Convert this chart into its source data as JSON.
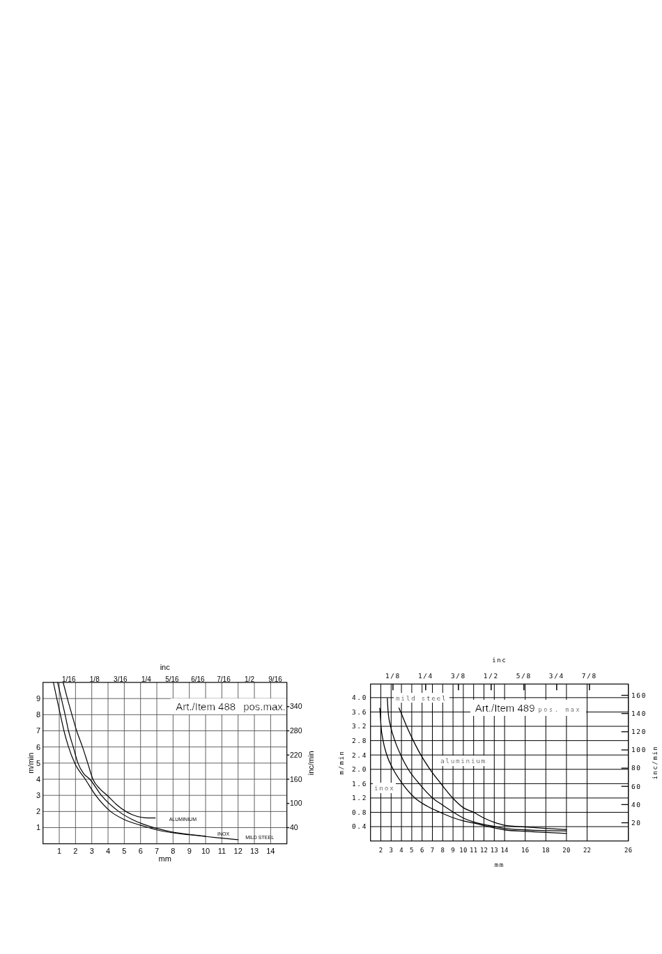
{
  "chart_data": [
    {
      "type": "line",
      "title": "Art./Item 488",
      "subtitle": "pos.max.",
      "xlabel": "mm",
      "ylabel": "m/min",
      "x2label": "inc",
      "y2label": "inc/min",
      "xlim": [
        0,
        15
      ],
      "xticks": [
        1,
        2,
        3,
        4,
        5,
        6,
        7,
        8,
        9,
        10,
        11,
        12,
        13,
        14
      ],
      "ylim": [
        0,
        10
      ],
      "yticks": [
        1,
        2,
        3,
        4,
        5,
        6,
        7,
        8,
        9
      ],
      "x2lim": [
        0,
        0.5906
      ],
      "x2ticks": [
        {
          "value": 0.0625,
          "label": "1/16"
        },
        {
          "value": 0.125,
          "label": "1/8"
        },
        {
          "value": 0.1875,
          "label": "3/16"
        },
        {
          "value": 0.25,
          "label": "1/4"
        },
        {
          "value": 0.3125,
          "label": "5/16"
        },
        {
          "value": 0.375,
          "label": "6/16"
        },
        {
          "value": 0.4375,
          "label": "7/16"
        },
        {
          "value": 0.5,
          "label": "1/2"
        },
        {
          "value": 0.5625,
          "label": "9/16"
        }
      ],
      "y2lim": [
        0,
        400
      ],
      "y2ticks": [
        40,
        100,
        160,
        220,
        280,
        340
      ],
      "grid": true,
      "series": [
        {
          "name": "ALUMINIUM",
          "color": "#000000",
          "x": [
            1.24,
            1.5,
            1.78,
            2.07,
            2.43,
            2.75,
            3.07,
            3.5,
            3.95,
            4.5,
            5.1,
            5.5,
            6.0,
            6.5,
            6.9
          ],
          "values": [
            10,
            9,
            8,
            7,
            6,
            5,
            4,
            3.4,
            3,
            2.45,
            2,
            1.8,
            1.65,
            1.6,
            1.6
          ]
        },
        {
          "name": "INOX",
          "color": "#000000",
          "x": [
            0.9,
            1.13,
            1.36,
            1.57,
            1.86,
            2.15,
            2.5,
            2.88,
            3.59,
            4.66,
            5.5,
            6.2,
            7.0,
            8.0,
            9.0,
            10.0
          ],
          "values": [
            10,
            9,
            8,
            7,
            6,
            5,
            4.35,
            4,
            3,
            2,
            1.5,
            1.2,
            0.95,
            0.72,
            0.58,
            0.47
          ]
        },
        {
          "name": "MILD STEEL",
          "color": "#000000",
          "x": [
            0.64,
            0.85,
            1.07,
            1.29,
            1.57,
            1.95,
            2.6,
            3.24,
            4.16,
            5.0,
            6.0,
            6.5,
            7.0,
            8.0,
            9.0,
            10.0,
            11.0,
            12.0
          ],
          "values": [
            10,
            9,
            8,
            7,
            6,
            5,
            4,
            3,
            2,
            1.5,
            1.15,
            1.0,
            0.86,
            0.68,
            0.56,
            0.45,
            0.35,
            0.25
          ]
        }
      ]
    },
    {
      "type": "line",
      "title": "Art./Item 489",
      "subtitle": "pos. max",
      "xlabel": "mm",
      "ylabel": "m/min",
      "x2label": "inc",
      "y2label": "inc/min",
      "xlim": [
        1,
        26
      ],
      "xticks": [
        2,
        3,
        4,
        5,
        6,
        7,
        8,
        9,
        10,
        11,
        12,
        13,
        14,
        16,
        18,
        20,
        22,
        26
      ],
      "ylim": [
        0,
        4.38
      ],
      "yticks": [
        0.4,
        0.8,
        1.2,
        1.6,
        {
          "value": 2,
          "label": "2.0"
        },
        2.4,
        2.8,
        3.2,
        3.6,
        {
          "value": 4,
          "label": "4.0"
        }
      ],
      "x2lim": [
        0.0394,
        1.0236
      ],
      "x2ticks": [
        {
          "value": 0.125,
          "label": "1/8"
        },
        {
          "value": 0.25,
          "label": "1/4"
        },
        {
          "value": 0.375,
          "label": "3/8"
        },
        {
          "value": 0.5,
          "label": "1/2"
        },
        {
          "value": 0.625,
          "label": "5/8"
        },
        {
          "value": 0.75,
          "label": "3/4"
        },
        {
          "value": 0.875,
          "label": "7/8"
        }
      ],
      "y2lim": [
        0,
        172.4
      ],
      "y2ticks": [
        20,
        40,
        60,
        80,
        100,
        120,
        140,
        160
      ],
      "grid": true,
      "series": [
        {
          "name": "aluminium",
          "color": "#000000",
          "x": [
            3.76,
            3.93,
            4.5,
            5.15,
            5.88,
            6.77,
            7.83,
            8.97,
            10,
            11,
            12,
            13,
            14,
            16,
            18,
            20
          ],
          "values": [
            3.71,
            3.6,
            3.2,
            2.8,
            2.4,
            2.0,
            1.6,
            1.2,
            0.93,
            0.8,
            0.64,
            0.52,
            0.44,
            0.39,
            0.35,
            0.32
          ]
        },
        {
          "name": "inox",
          "color": "#000000",
          "x": [
            1.89,
            1.93,
            2.02,
            2.22,
            2.58,
            3.2,
            4.09,
            5.31,
            6.5,
            7.75,
            9,
            10,
            11,
            12.46,
            14,
            16,
            18,
            20
          ],
          "values": [
            3.71,
            3.6,
            3.2,
            2.8,
            2.4,
            2.0,
            1.6,
            1.2,
            0.97,
            0.8,
            0.65,
            0.56,
            0.5,
            0.4,
            0.31,
            0.27,
            0.24,
            0.21
          ]
        },
        {
          "name": "mild steel",
          "color": "#000000",
          "x": [
            2.63,
            2.71,
            2.95,
            3.36,
            3.93,
            4.66,
            5.72,
            7.02,
            8,
            9.05,
            10,
            11,
            12,
            13.11,
            14,
            16,
            18,
            20
          ],
          "values": [
            3.98,
            3.6,
            3.2,
            2.8,
            2.4,
            2.0,
            1.6,
            1.2,
            1.0,
            0.8,
            0.64,
            0.53,
            0.46,
            0.4,
            0.35,
            0.31,
            0.29,
            0.28
          ]
        }
      ]
    }
  ]
}
